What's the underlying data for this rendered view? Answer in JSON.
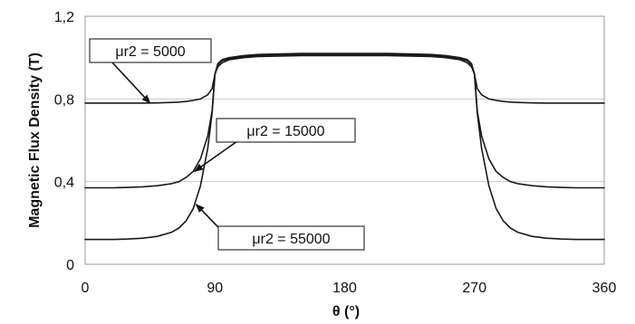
{
  "chart_data": {
    "type": "line",
    "title": "",
    "xlabel": "θ (°)",
    "ylabel": "Magnetic Flux Density (T)",
    "xlim": [
      0,
      360
    ],
    "ylim": [
      0,
      1.2
    ],
    "x_ticks": [
      "0",
      "90",
      "180",
      "270",
      "360"
    ],
    "y_ticks": [
      "0",
      "0,4",
      "0,8",
      "1,2"
    ],
    "grid": "horizontal",
    "x": [
      0,
      10,
      20,
      30,
      40,
      50,
      60,
      65,
      70,
      75,
      80,
      85,
      88,
      90,
      92,
      95,
      100,
      110,
      120,
      150,
      180,
      210,
      240,
      250,
      260,
      265,
      268,
      270,
      272,
      275,
      280,
      285,
      290,
      295,
      300,
      310,
      320,
      330,
      340,
      350,
      360
    ],
    "series": [
      {
        "name": "μr2 = 5000",
        "values": [
          0.78,
          0.78,
          0.78,
          0.78,
          0.78,
          0.781,
          0.783,
          0.785,
          0.788,
          0.793,
          0.8,
          0.82,
          0.85,
          0.92,
          0.955,
          0.975,
          0.99,
          1.0,
          1.005,
          1.01,
          1.01,
          1.01,
          1.005,
          1.0,
          0.99,
          0.975,
          0.955,
          0.92,
          0.85,
          0.82,
          0.8,
          0.793,
          0.788,
          0.785,
          0.783,
          0.781,
          0.78,
          0.78,
          0.78,
          0.78,
          0.78
        ]
      },
      {
        "name": "μr2 = 15000",
        "values": [
          0.37,
          0.37,
          0.37,
          0.372,
          0.375,
          0.38,
          0.39,
          0.4,
          0.42,
          0.45,
          0.51,
          0.62,
          0.74,
          0.92,
          0.965,
          0.985,
          0.995,
          1.005,
          1.01,
          1.015,
          1.015,
          1.015,
          1.01,
          1.005,
          0.995,
          0.985,
          0.965,
          0.92,
          0.74,
          0.62,
          0.51,
          0.45,
          0.42,
          0.4,
          0.39,
          0.38,
          0.375,
          0.372,
          0.37,
          0.37,
          0.37
        ]
      },
      {
        "name": "μr2 = 55000",
        "values": [
          0.12,
          0.12,
          0.12,
          0.122,
          0.126,
          0.135,
          0.155,
          0.175,
          0.21,
          0.27,
          0.38,
          0.56,
          0.73,
          0.92,
          0.97,
          0.99,
          1.0,
          1.01,
          1.015,
          1.02,
          1.02,
          1.02,
          1.015,
          1.01,
          1.0,
          0.99,
          0.97,
          0.92,
          0.73,
          0.56,
          0.38,
          0.27,
          0.21,
          0.175,
          0.155,
          0.135,
          0.126,
          0.122,
          0.12,
          0.12,
          0.12
        ]
      }
    ],
    "annotations": [
      {
        "label": "μr2 = 5000",
        "target_x": 45,
        "target_y": 0.78
      },
      {
        "label": "μr2 = 15000",
        "target_x": 76,
        "target_y": 0.45
      },
      {
        "label": "μr2 = 55000",
        "target_x": 77,
        "target_y": 0.29
      }
    ]
  }
}
